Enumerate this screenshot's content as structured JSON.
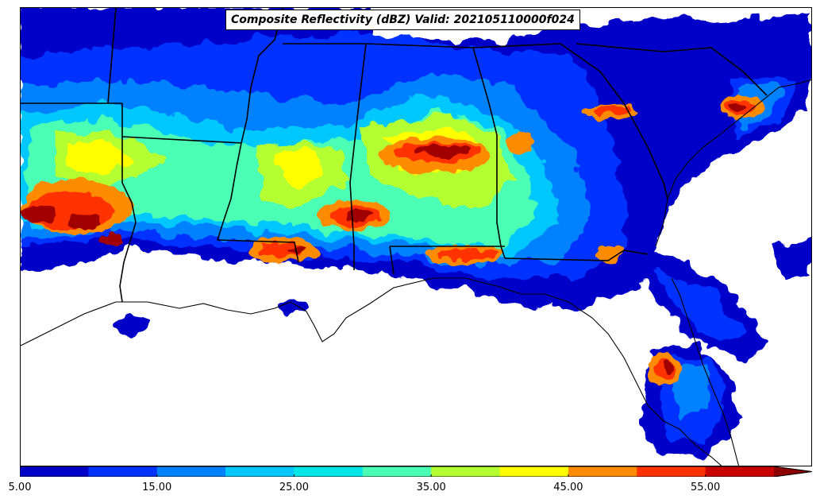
{
  "title": "Composite Reflectivity (dBZ) Valid: 202105110000f024",
  "colorbar": {
    "units": "dBZ",
    "bounds": [
      5,
      10,
      15,
      20,
      25,
      30,
      35,
      40,
      45,
      50,
      55
    ],
    "colors": [
      "#0000c8",
      "#0032ff",
      "#0082ff",
      "#00c8ff",
      "#00e6e6",
      "#4bffb4",
      "#b4ff32",
      "#ffff00",
      "#ff8c00",
      "#ff3200",
      "#c80000"
    ],
    "extend": "max",
    "extend_color": "#8c0000",
    "tick_labels": [
      "5.00",
      "15.00",
      "25.00",
      "35.00",
      "45.00",
      "55.00"
    ]
  },
  "map": {
    "region": "Southeastern United States and Gulf of Mexico",
    "field": "composite reflectivity",
    "features": [
      "coastline",
      "state-borders",
      "gulf-of-mexico",
      "florida-peninsula"
    ]
  }
}
